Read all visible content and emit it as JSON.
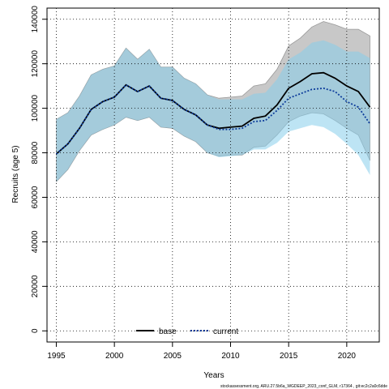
{
  "chart_data": {
    "type": "area",
    "title": "",
    "xlabel": "Years",
    "ylabel": "Recruits (age 5)",
    "xlim": [
      1994.2,
      2022.8
    ],
    "ylim": [
      -5000,
      145000
    ],
    "x_ticks": [
      1995,
      2000,
      2005,
      2010,
      2015,
      2020
    ],
    "y_ticks": [
      0,
      20000,
      40000,
      60000,
      80000,
      100000,
      120000,
      140000
    ],
    "grid": true,
    "legend_position": "bottom-center",
    "years": [
      1995,
      1996,
      1997,
      1998,
      1999,
      2000,
      2001,
      2002,
      2003,
      2004,
      2005,
      2006,
      2007,
      2008,
      2009,
      2010,
      2011,
      2012,
      2013,
      2014,
      2015,
      2016,
      2017,
      2018,
      2019,
      2020,
      2021,
      2022
    ],
    "series": [
      {
        "name": "base",
        "color": "#000000",
        "fill_color": "#bebebe",
        "line_style": "solid",
        "values": [
          79500,
          84000,
          91000,
          99500,
          103000,
          105000,
          110500,
          107500,
          110000,
          104500,
          103500,
          99500,
          97000,
          92500,
          91000,
          91500,
          92000,
          95500,
          96500,
          101500,
          109000,
          112000,
          115500,
          116000,
          113500,
          110000,
          107500,
          100500
        ],
        "lower": [
          67000,
          72500,
          81000,
          88000,
          90500,
          92500,
          96000,
          94500,
          96000,
          91500,
          91000,
          87500,
          85000,
          80000,
          78500,
          79000,
          79000,
          82500,
          83000,
          88000,
          94000,
          96500,
          98000,
          97500,
          94500,
          91000,
          88000,
          76500
        ],
        "upper": [
          95000,
          98000,
          105500,
          115000,
          117500,
          119000,
          127000,
          122000,
          126500,
          118500,
          118500,
          113500,
          111000,
          106000,
          104500,
          105000,
          105500,
          110000,
          111000,
          117500,
          128000,
          131500,
          136500,
          139000,
          137500,
          135500,
          135500,
          132500
        ]
      },
      {
        "name": "current",
        "color": "#0d3c9b",
        "fill_color": "#87ceeb",
        "line_style": "dotted",
        "values": [
          79500,
          84000,
          91000,
          99500,
          103000,
          105000,
          110500,
          107500,
          110000,
          104500,
          103500,
          99500,
          97000,
          92500,
          90500,
          90500,
          91000,
          94000,
          94500,
          99000,
          104500,
          106500,
          108500,
          109000,
          107500,
          103000,
          100500,
          93000
        ],
        "lower": [
          67000,
          72500,
          81000,
          88000,
          90500,
          92500,
          96000,
          94500,
          96000,
          91500,
          91000,
          87500,
          85000,
          80000,
          78000,
          78500,
          79000,
          81500,
          81500,
          84500,
          89500,
          91000,
          92500,
          91500,
          88500,
          84000,
          79000,
          70000
        ],
        "upper": [
          95000,
          98000,
          105500,
          115000,
          117500,
          119000,
          127000,
          122000,
          126500,
          118500,
          118500,
          113500,
          111000,
          106000,
          104000,
          104000,
          104000,
          106500,
          107000,
          113000,
          122000,
          125000,
          129500,
          130500,
          128500,
          125500,
          125500,
          122500
        ]
      }
    ],
    "footnote": "stockassessment.org, ARU.27.5b6a_WGDEEP_2023_conf_GLM, r17364 , git:ec2c2a0c6dde"
  }
}
